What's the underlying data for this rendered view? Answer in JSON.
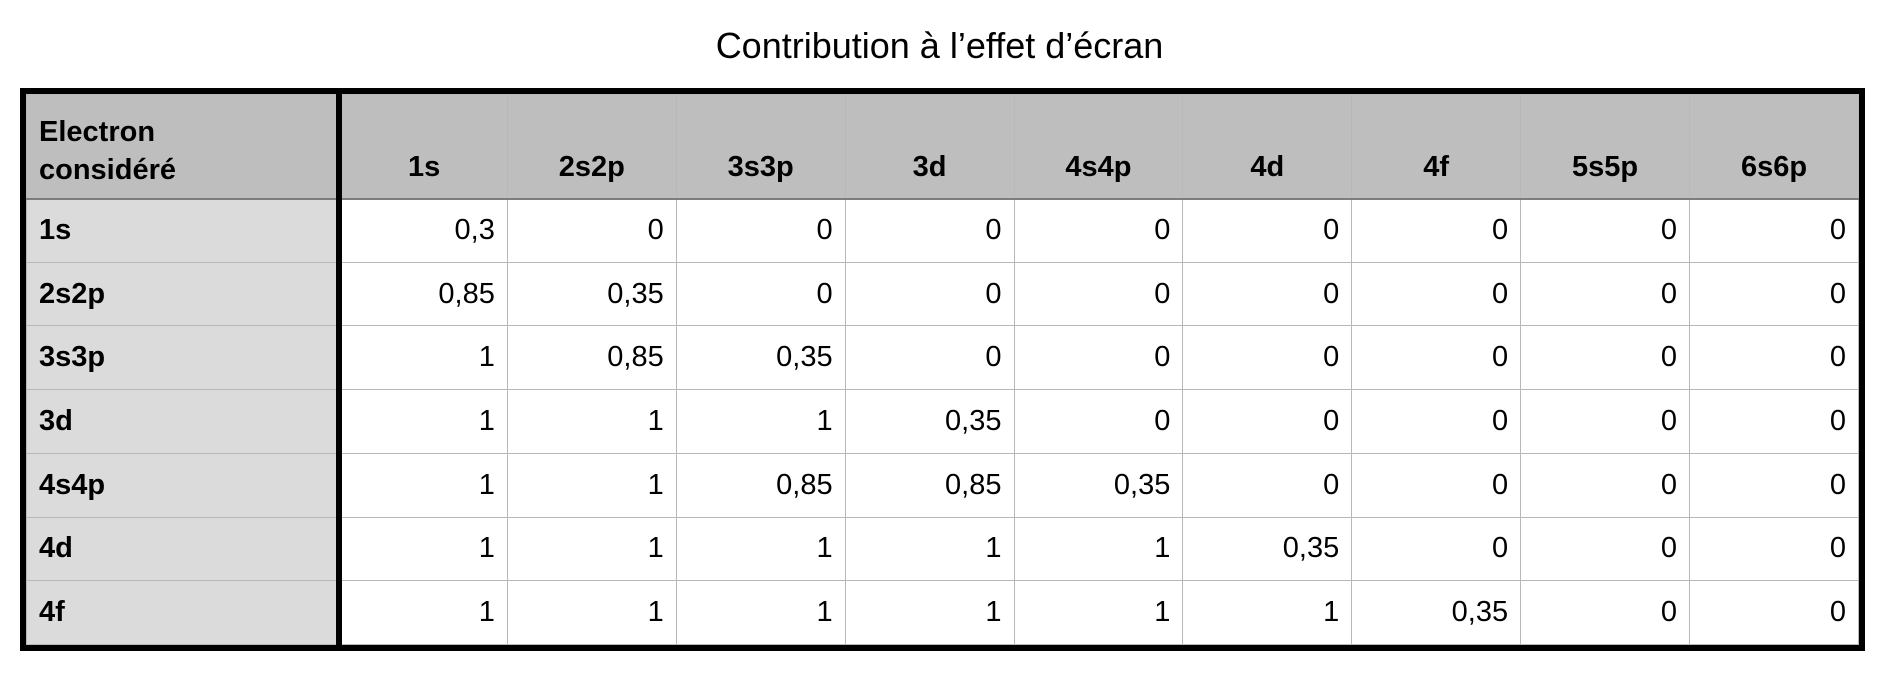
{
  "title": "Contribution à l’effet d’écran",
  "table": {
    "corner_label_line1": "Electron",
    "corner_label_line2": "considéré",
    "columns": [
      "1s",
      "2s2p",
      "3s3p",
      "3d",
      "4s4p",
      "4d",
      "4f",
      "5s5p",
      "6s6p"
    ],
    "rows": [
      {
        "label": "1s",
        "values": [
          "0,3",
          "0",
          "0",
          "0",
          "0",
          "0",
          "0",
          "0",
          "0"
        ]
      },
      {
        "label": "2s2p",
        "values": [
          "0,85",
          "0,35",
          "0",
          "0",
          "0",
          "0",
          "0",
          "0",
          "0"
        ]
      },
      {
        "label": "3s3p",
        "values": [
          "1",
          "0,85",
          "0,35",
          "0",
          "0",
          "0",
          "0",
          "0",
          "0"
        ]
      },
      {
        "label": "3d",
        "values": [
          "1",
          "1",
          "1",
          "0,35",
          "0",
          "0",
          "0",
          "0",
          "0"
        ]
      },
      {
        "label": "4s4p",
        "values": [
          "1",
          "1",
          "0,85",
          "0,85",
          "0,35",
          "0",
          "0",
          "0",
          "0"
        ]
      },
      {
        "label": "4d",
        "values": [
          "1",
          "1",
          "1",
          "1",
          "1",
          "0,35",
          "0",
          "0",
          "0"
        ]
      },
      {
        "label": "4f",
        "values": [
          "1",
          "1",
          "1",
          "1",
          "1",
          "1",
          "0,35",
          "0",
          "0"
        ]
      }
    ]
  },
  "colors": {
    "header_bg": "#bdbebd",
    "row_header_bg": "#dbdbdb",
    "border": "#000000"
  }
}
